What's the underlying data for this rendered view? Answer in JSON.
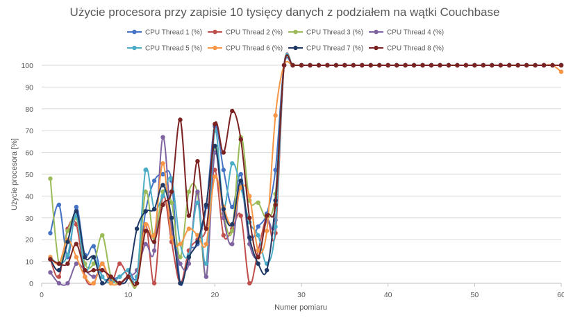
{
  "chart_data": {
    "type": "line",
    "title": "Użycie procesora przy zapisie 10 tysięcy danych z podziałem na wątki  Couchbase",
    "xlabel": "Numer pomiaru",
    "ylabel": "Użycie procesora [%]",
    "xlim": [
      0,
      60
    ],
    "ylim": [
      0,
      100
    ],
    "xticks": [
      0,
      10,
      20,
      30,
      40,
      50,
      60
    ],
    "yticks": [
      0,
      10,
      20,
      30,
      40,
      50,
      60,
      70,
      80,
      90,
      100
    ],
    "grid": "horizontal",
    "legend_position": "top",
    "x": [
      1,
      2,
      3,
      4,
      5,
      6,
      7,
      8,
      9,
      10,
      11,
      12,
      13,
      14,
      15,
      16,
      17,
      18,
      19,
      20,
      21,
      22,
      23,
      24,
      25,
      26,
      27,
      28,
      29,
      30,
      31,
      32,
      33,
      34,
      35,
      36,
      37,
      38,
      39,
      40,
      41,
      42,
      43,
      44,
      45,
      46,
      47,
      48,
      49,
      50,
      51,
      52,
      53,
      54,
      55,
      56,
      57,
      58,
      59,
      60
    ],
    "series": [
      {
        "name": "CPU Thread 1 (%)",
        "color": "#4472c4",
        "values": [
          23,
          36,
          12,
          35,
          13,
          17,
          3,
          2,
          3,
          6,
          3,
          33,
          47,
          50,
          47,
          0,
          15,
          18,
          35,
          72,
          52,
          35,
          50,
          21,
          26,
          32,
          52,
          100,
          100,
          100,
          100,
          100,
          100,
          100,
          100,
          100,
          100,
          100,
          100,
          100,
          100,
          100,
          100,
          100,
          100,
          100,
          100,
          100,
          100,
          100,
          100,
          100,
          100,
          100,
          100,
          100,
          100,
          100,
          100,
          100
        ]
      },
      {
        "name": "CPU Thread 2 (%)",
        "color": "#c0504d",
        "values": [
          11,
          3,
          25,
          27,
          3,
          0,
          9,
          0,
          9,
          3,
          0,
          27,
          0,
          40,
          19,
          0,
          15,
          20,
          25,
          52,
          22,
          25,
          31,
          0,
          15,
          30,
          23,
          100,
          100,
          100,
          100,
          100,
          100,
          100,
          100,
          100,
          100,
          100,
          100,
          100,
          100,
          100,
          100,
          100,
          100,
          100,
          100,
          100,
          100,
          100,
          100,
          100,
          100,
          100,
          100,
          100,
          100,
          100,
          100,
          100
        ]
      },
      {
        "name": "CPU Thread 3 (%)",
        "color": "#9bbb59",
        "values": [
          48,
          9,
          24,
          30,
          9,
          9,
          22,
          3,
          0,
          3,
          0,
          42,
          21,
          42,
          37,
          12,
          42,
          41,
          3,
          63,
          32,
          24,
          67,
          38,
          37,
          30,
          41,
          100,
          100,
          100,
          100,
          100,
          100,
          100,
          100,
          100,
          100,
          100,
          100,
          100,
          100,
          100,
          100,
          100,
          100,
          100,
          100,
          100,
          100,
          100,
          100,
          100,
          100,
          100,
          100,
          100,
          100,
          100,
          100,
          100
        ]
      },
      {
        "name": "CPU Thread 4 (%)",
        "color": "#8064a2",
        "values": [
          5,
          0,
          0,
          9,
          6,
          3,
          6,
          3,
          0,
          3,
          6,
          18,
          15,
          67,
          25,
          9,
          9,
          42,
          3,
          60,
          30,
          18,
          45,
          18,
          12,
          29,
          29,
          100,
          100,
          100,
          100,
          100,
          100,
          100,
          100,
          100,
          100,
          100,
          100,
          100,
          100,
          100,
          100,
          100,
          100,
          100,
          100,
          100,
          100,
          100,
          100,
          100,
          100,
          100,
          100,
          100,
          100,
          100,
          100,
          100
        ]
      },
      {
        "name": "CPU Thread 5 (%)",
        "color": "#4bacc6",
        "values": [
          12,
          9,
          13,
          31,
          6,
          12,
          3,
          0,
          3,
          6,
          3,
          52,
          34,
          40,
          48,
          18,
          13,
          37,
          9,
          70,
          35,
          55,
          44,
          28,
          22,
          9,
          26,
          100,
          100,
          100,
          100,
          100,
          100,
          100,
          100,
          100,
          100,
          100,
          100,
          100,
          100,
          100,
          100,
          100,
          100,
          100,
          100,
          100,
          100,
          100,
          100,
          100,
          100,
          100,
          100,
          100,
          100,
          100,
          100,
          100
        ]
      },
      {
        "name": "CPU Thread 6 (%)",
        "color": "#f79646",
        "values": [
          12,
          9,
          20,
          12,
          3,
          0,
          9,
          0,
          0,
          3,
          0,
          27,
          22,
          55,
          21,
          18,
          25,
          22,
          18,
          49,
          35,
          27,
          44,
          40,
          15,
          24,
          77,
          100,
          100,
          100,
          100,
          100,
          100,
          100,
          100,
          100,
          100,
          100,
          100,
          100,
          100,
          100,
          100,
          100,
          100,
          100,
          100,
          100,
          100,
          100,
          100,
          100,
          100,
          100,
          100,
          100,
          100,
          100,
          100,
          97
        ]
      },
      {
        "name": "CPU Thread 7 (%)",
        "color": "#1f3864",
        "values": [
          11,
          6,
          19,
          33,
          12,
          12,
          0,
          3,
          0,
          3,
          25,
          33,
          34,
          45,
          30,
          0,
          12,
          19,
          36,
          63,
          34,
          27,
          47,
          21,
          9,
          6,
          38,
          100,
          100,
          100,
          100,
          100,
          100,
          100,
          100,
          100,
          100,
          100,
          100,
          100,
          100,
          100,
          100,
          100,
          100,
          100,
          100,
          100,
          100,
          100,
          100,
          100,
          100,
          100,
          100,
          100,
          100,
          100,
          100,
          100
        ]
      },
      {
        "name": "CPU Thread 8 (%)",
        "color": "#7b2323",
        "values": [
          11,
          9,
          9,
          18,
          6,
          6,
          6,
          3,
          0,
          3,
          0,
          24,
          19,
          36,
          42,
          75,
          31,
          56,
          25,
          73,
          60,
          79,
          66,
          30,
          12,
          31,
          36,
          100,
          100,
          100,
          100,
          100,
          100,
          100,
          100,
          100,
          100,
          100,
          100,
          100,
          100,
          100,
          100,
          100,
          100,
          100,
          100,
          100,
          100,
          100,
          100,
          100,
          100,
          100,
          100,
          100,
          100,
          100,
          100,
          100
        ]
      }
    ]
  }
}
